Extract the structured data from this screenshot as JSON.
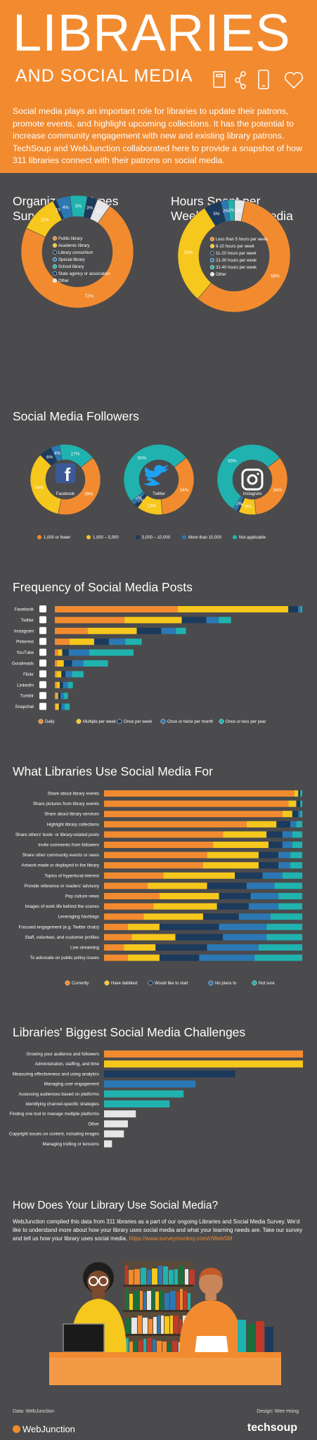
{
  "header": {
    "title": "LIBRARIES",
    "subtitle": "AND SOCIAL MEDIA",
    "intro": "Social media plays an important role for libraries to update their patrons, promote events, and highlight upcoming collections. It has the potential to increase community engagement with new and existing library patrons. TechSoup and WebJunction collaborated here to provide a snapshot of how 311 libraries connect with their patrons on social media."
  },
  "colors": {
    "bg": "#4b4b4d",
    "orange": "#f28b30",
    "yellow": "#f6c71c",
    "navy": "#1b3a5c",
    "blue": "#2b78b4",
    "teal": "#20b2ae",
    "light": "#e6e6e6",
    "white": "#ffffff"
  },
  "sections": {
    "org_title_1": "Organization Types",
    "org_title_2": "Surveyed",
    "hours_title_1": "Hours Spent per",
    "hours_title_2": "Week on Social Media",
    "followers_title": "Social Media Followers",
    "freq_title": "Frequency of Social Media Posts",
    "use_title": "What Libraries Use Social Media For",
    "chal_title": "Libraries' Biggest Social Media Challenges",
    "how_title": "How Does Your Library Use Social Media?"
  },
  "how": {
    "text": "WebJunction compiled this data from 311 libraries as a part of our ongoing Libraries and Social Media Survey. We'd like to understand more about how your library uses social media and what your learning needs are. Take our survey and tell us how your library uses social media.",
    "link": "https://www.surveymonkey.com/r/WebSM"
  },
  "footer": {
    "data_label": "Data: WebJunction",
    "design_label": "Design: Wee Hsing",
    "brand_left": "WebJunction",
    "brand_right": "techsoup"
  },
  "chart_data": [
    {
      "type": "pie",
      "id": "org_types",
      "title": "Organization Types Surveyed",
      "labels": [
        "Public library",
        "Academic library",
        "Library consortium",
        "Special library",
        "School library",
        "State agency or association",
        "Other"
      ],
      "values": [
        72,
        11,
        1,
        4,
        5,
        3,
        4
      ],
      "colors": [
        "#f28b30",
        "#f6c71c",
        "#1b3a5c",
        "#2b78b4",
        "#20b2ae",
        "#1b3a5c",
        "#e6e6e6"
      ],
      "data_labels": [
        "72%",
        "11%",
        "1%",
        "4%",
        "5%",
        "3%",
        "4%"
      ]
    },
    {
      "type": "pie",
      "id": "hours",
      "title": "Hours Spent per Week on Social Media",
      "labels": [
        "Less than 5 hours per week",
        "6-10 hours per week",
        "11-20 hours per week",
        "21-30 hours per week",
        "31-40 hours per week",
        "Other"
      ],
      "values": [
        58,
        30,
        5,
        2,
        2,
        3
      ],
      "colors": [
        "#f28b30",
        "#f6c71c",
        "#1b3a5c",
        "#2b78b4",
        "#20b2ae",
        "#e6e6e6"
      ],
      "data_labels": [
        "58%",
        "30%",
        "5%",
        "2%",
        "2%",
        "3%"
      ]
    },
    {
      "type": "pie",
      "id": "followers",
      "title": "Social Media Followers",
      "legend": [
        "1,000 or fewer",
        "1,000 – 5,000",
        "5,000 – 10,000",
        "More than 10,000",
        "Not applicable"
      ],
      "colors": [
        "#f28b30",
        "#f6c71c",
        "#1b3a5c",
        "#2b78b4",
        "#20b2ae"
      ],
      "charts": [
        {
          "name": "Facebook",
          "values": [
            39,
            34,
            6,
            4,
            17
          ],
          "data_labels": [
            "39%",
            "34%",
            "6%",
            "4%",
            "17%"
          ]
        },
        {
          "name": "Twitter",
          "values": [
            34,
            12,
            2,
            2,
            50
          ],
          "data_labels": [
            "34%",
            "12%",
            "2%",
            "2%",
            "50%"
          ]
        },
        {
          "name": "Instagram",
          "values": [
            34,
            8,
            1,
            2,
            55
          ],
          "data_labels": [
            "34%",
            "8%",
            "1%",
            "2%",
            "55%"
          ]
        }
      ]
    },
    {
      "type": "bar",
      "id": "frequency",
      "title": "Frequency of Social Media Posts",
      "stacked": true,
      "categories": [
        "Facebook",
        "Twitter",
        "Instagram",
        "Pinterest",
        "YouTube",
        "Goodreads",
        "Flickr",
        "LinkedIn",
        "Tumblr",
        "Snapchat"
      ],
      "series": [
        {
          "name": "Daily",
          "color": "#f28b30",
          "values": [
            150,
            85,
            40,
            18,
            4,
            3,
            2,
            2,
            2,
            1
          ]
        },
        {
          "name": "Multiple per week",
          "color": "#f6c71c",
          "values": [
            135,
            70,
            60,
            30,
            5,
            8,
            6,
            4,
            2,
            4
          ]
        },
        {
          "name": "Once per week",
          "color": "#1b3a5c",
          "values": [
            12,
            30,
            30,
            18,
            8,
            10,
            5,
            4,
            3,
            3
          ]
        },
        {
          "name": "Once or twice per month",
          "color": "#2b78b4",
          "values": [
            3,
            15,
            18,
            20,
            25,
            14,
            8,
            6,
            4,
            4
          ]
        },
        {
          "name": "Once or less per year",
          "color": "#20b2ae",
          "values": [
            2,
            15,
            12,
            20,
            54,
            30,
            14,
            6,
            5,
            6
          ]
        }
      ],
      "icon_colors": [
        "#fff",
        "#fff",
        "#fff",
        "#fff",
        "#fff",
        "#fff",
        "#fff",
        "#fff",
        "#fff",
        "#fff"
      ]
    },
    {
      "type": "bar",
      "id": "uses",
      "title": "What Libraries Use Social Media For",
      "stacked": true,
      "percent": true,
      "categories": [
        "Share about library events",
        "Share pictures from library events",
        "Share about library services",
        "Highlight library collections",
        "Share others' book- or library-related posts",
        "Invite comments from followers",
        "Share other community events or news",
        "Artwork made or displayed in the library",
        "Topics of hyperlocal interest",
        "Provide reference or readers' advisory",
        "Pop culture news",
        "Images of work life behind the scenes",
        "Leveraging hashtags",
        "Focused engagement (e.g. Twitter chats)",
        "Staff, volunteer, and customer profiles",
        "Live streaming",
        "To advocate on public policy issues"
      ],
      "series": [
        {
          "name": "Currently",
          "color": "#f28b30",
          "values": [
            96,
            93,
            90,
            72,
            60,
            55,
            52,
            50,
            30,
            22,
            28,
            25,
            20,
            12,
            14,
            10,
            12
          ]
        },
        {
          "name": "Have dabbled",
          "color": "#f6c71c",
          "values": [
            2,
            4,
            5,
            15,
            22,
            28,
            26,
            28,
            36,
            30,
            30,
            32,
            30,
            16,
            22,
            16,
            16
          ]
        },
        {
          "name": "Would like to start",
          "color": "#1b3a5c",
          "values": [
            1,
            2,
            3,
            7,
            8,
            7,
            10,
            10,
            14,
            20,
            16,
            16,
            18,
            30,
            24,
            26,
            20
          ]
        },
        {
          "name": "No plans to",
          "color": "#2b78b4",
          "values": [
            0,
            0,
            1,
            3,
            5,
            5,
            6,
            6,
            10,
            14,
            14,
            15,
            16,
            24,
            22,
            26,
            28
          ]
        },
        {
          "name": "Not sure",
          "color": "#20b2ae",
          "values": [
            1,
            1,
            1,
            3,
            5,
            5,
            6,
            6,
            10,
            14,
            12,
            12,
            16,
            18,
            18,
            22,
            24
          ]
        }
      ]
    },
    {
      "type": "bar",
      "id": "challenges",
      "title": "Libraries' Biggest Social Media Challenges",
      "categories": [
        "Growing your audience and followers",
        "Administration, staffing, and time",
        "Measuring effectiveness and using analytics",
        "Managing user engagement",
        "Assessing audiences based on platforms",
        "Identifying channel-specific strategies",
        "Finding one tool to manage multiple platforms",
        "Other",
        "Copyright issues on content, including images",
        "Managing trolling or tensions"
      ],
      "values": [
        100,
        100,
        66,
        46,
        40,
        33,
        16,
        12,
        10,
        4
      ],
      "colors": [
        "#f28b30",
        "#f6c71c",
        "#1b3a5c",
        "#2b78b4",
        "#20b2ae",
        "#20b2ae",
        "#e6e6e6",
        "#e6e6e6",
        "#e6e6e6",
        "#e6e6e6"
      ]
    }
  ]
}
